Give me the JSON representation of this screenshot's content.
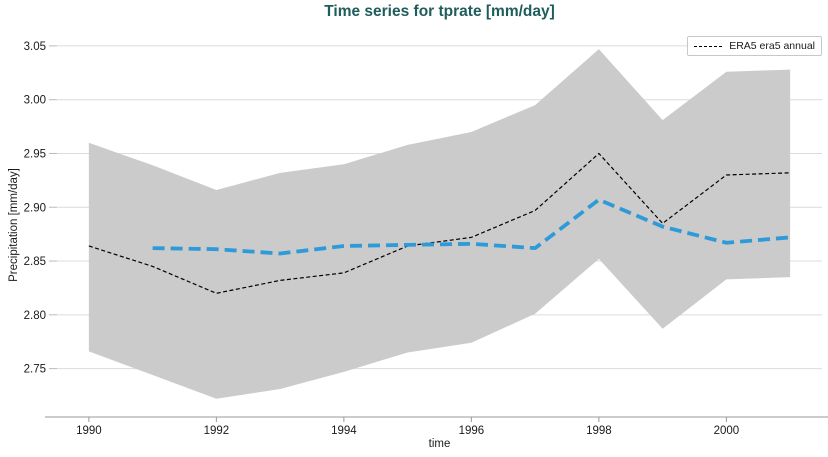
{
  "title": "Time series for tprate [mm/day]",
  "colors": {
    "title": "#1f5c5c",
    "era5_line": "#000000",
    "blue_line": "#2e9bd8",
    "band": "#cbcbcb",
    "grid": "#dcdcdc",
    "spine": "#999999",
    "y_tick": "#bbbbbb",
    "tick_label": "#1a1a1a",
    "background": "#ffffff"
  },
  "legend": {
    "position": "upper right",
    "entries": [
      {
        "label": "ERA5 era5 annual",
        "sample": "black-dashed-line"
      }
    ]
  },
  "chart_data": {
    "type": "line",
    "title": "Time series for tprate [mm/day]",
    "xlabel": "time",
    "ylabel": "Precipitation [mm/day]",
    "xlim": [
      1989.5,
      2001.5
    ],
    "ylim": [
      2.705,
      3.062
    ],
    "xticks": [
      1990,
      1992,
      1994,
      1996,
      1998,
      2000
    ],
    "yticks": [
      2.75,
      2.8,
      2.85,
      2.9,
      2.95,
      3.0,
      3.05
    ],
    "grid": "horizontal-only",
    "band": {
      "name": "ensemble spread (gray shaded band)",
      "color": "#cbcbcb",
      "x": [
        1990,
        1991,
        1992,
        1993,
        1994,
        1995,
        1996,
        1997,
        1998,
        1999,
        2000,
        2001
      ],
      "upper": [
        2.96,
        2.939,
        2.916,
        2.932,
        2.94,
        2.958,
        2.97,
        2.995,
        3.047,
        2.981,
        3.026,
        3.028
      ],
      "lower": [
        2.766,
        2.744,
        2.722,
        2.731,
        2.747,
        2.765,
        2.774,
        2.801,
        2.852,
        2.787,
        2.833,
        2.835
      ]
    },
    "series": [
      {
        "name": "ERA5 era5 annual",
        "color": "#000000",
        "line_style": "dashed",
        "line_width": 1.2,
        "dash": [
          4,
          2.5
        ],
        "x": [
          1990,
          1991,
          1992,
          1993,
          1994,
          1995,
          1996,
          1997,
          1998,
          1999,
          2000,
          2001
        ],
        "values": [
          2.864,
          2.845,
          2.82,
          2.832,
          2.839,
          2.864,
          2.872,
          2.897,
          2.95,
          2.885,
          2.93,
          2.932
        ]
      },
      {
        "name": "",
        "color": "#2e9bd8",
        "line_style": "dashed",
        "line_width": 3.8,
        "dash": [
          12,
          6
        ],
        "x": [
          1991,
          1992,
          1993,
          1994,
          1995,
          1996,
          1997,
          1998,
          1999,
          2000,
          2001
        ],
        "values": [
          2.862,
          2.861,
          2.857,
          2.864,
          2.865,
          2.866,
          2.862,
          2.907,
          2.882,
          2.867,
          2.872
        ]
      }
    ]
  }
}
